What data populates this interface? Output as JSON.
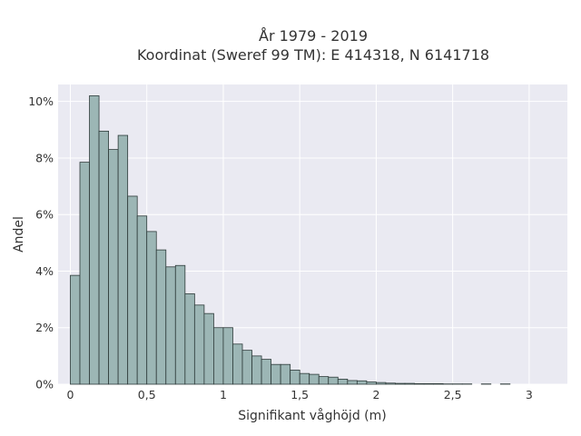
{
  "chart_data": {
    "type": "bar",
    "title": [
      "År 1979 - 2019",
      "Koordinat (Sweref 99 TM): E 414318, N 6141718"
    ],
    "xlabel": "Signifikant våghöjd (m)",
    "ylabel": "Andel",
    "xlim": [
      -0.08,
      3.25
    ],
    "ylim": [
      0,
      10.6
    ],
    "x_ticks": [
      0,
      0.5,
      1,
      1.5,
      2,
      2.5,
      3
    ],
    "x_tick_labels": [
      "0",
      "0,5",
      "1",
      "1,5",
      "2",
      "2,5",
      "3"
    ],
    "y_ticks": [
      0,
      2,
      4,
      6,
      8,
      10
    ],
    "y_tick_labels": [
      "0%",
      "2%",
      "4%",
      "6%",
      "8%",
      "10%"
    ],
    "grid": true,
    "bin_width": 0.0625,
    "bin_starts": [
      0,
      0.0625,
      0.125,
      0.1875,
      0.25,
      0.3125,
      0.375,
      0.4375,
      0.5,
      0.5625,
      0.625,
      0.6875,
      0.75,
      0.8125,
      0.875,
      0.9375,
      1.0,
      1.0625,
      1.125,
      1.1875,
      1.25,
      1.3125,
      1.375,
      1.4375,
      1.5,
      1.5625,
      1.625,
      1.6875,
      1.75,
      1.8125,
      1.875,
      1.9375,
      2.0,
      2.0625,
      2.125,
      2.1875,
      2.25,
      2.3125,
      2.375,
      2.4375,
      2.5,
      2.5625,
      2.625,
      2.6875,
      2.75,
      2.8125,
      2.875,
      2.9375,
      3.0
    ],
    "values": [
      3.85,
      7.85,
      10.2,
      8.95,
      8.3,
      8.8,
      6.65,
      5.95,
      5.4,
      4.75,
      4.15,
      4.2,
      3.2,
      2.8,
      2.5,
      2.0,
      2.0,
      1.42,
      1.2,
      1.0,
      0.88,
      0.7,
      0.7,
      0.5,
      0.38,
      0.35,
      0.27,
      0.25,
      0.18,
      0.13,
      0.12,
      0.08,
      0.06,
      0.04,
      0.03,
      0.03,
      0.02,
      0.02,
      0.02,
      0.01,
      0.01,
      0.01,
      0.0,
      0.01,
      0.0,
      0.01,
      0.0,
      0.0,
      0.0
    ],
    "colors": {
      "bar_fill": "#9cb6b5",
      "bar_stroke": "#2e3b3a",
      "plot_background": "#eaeaf2",
      "grid": "#ffffff",
      "text": "#333333"
    }
  }
}
